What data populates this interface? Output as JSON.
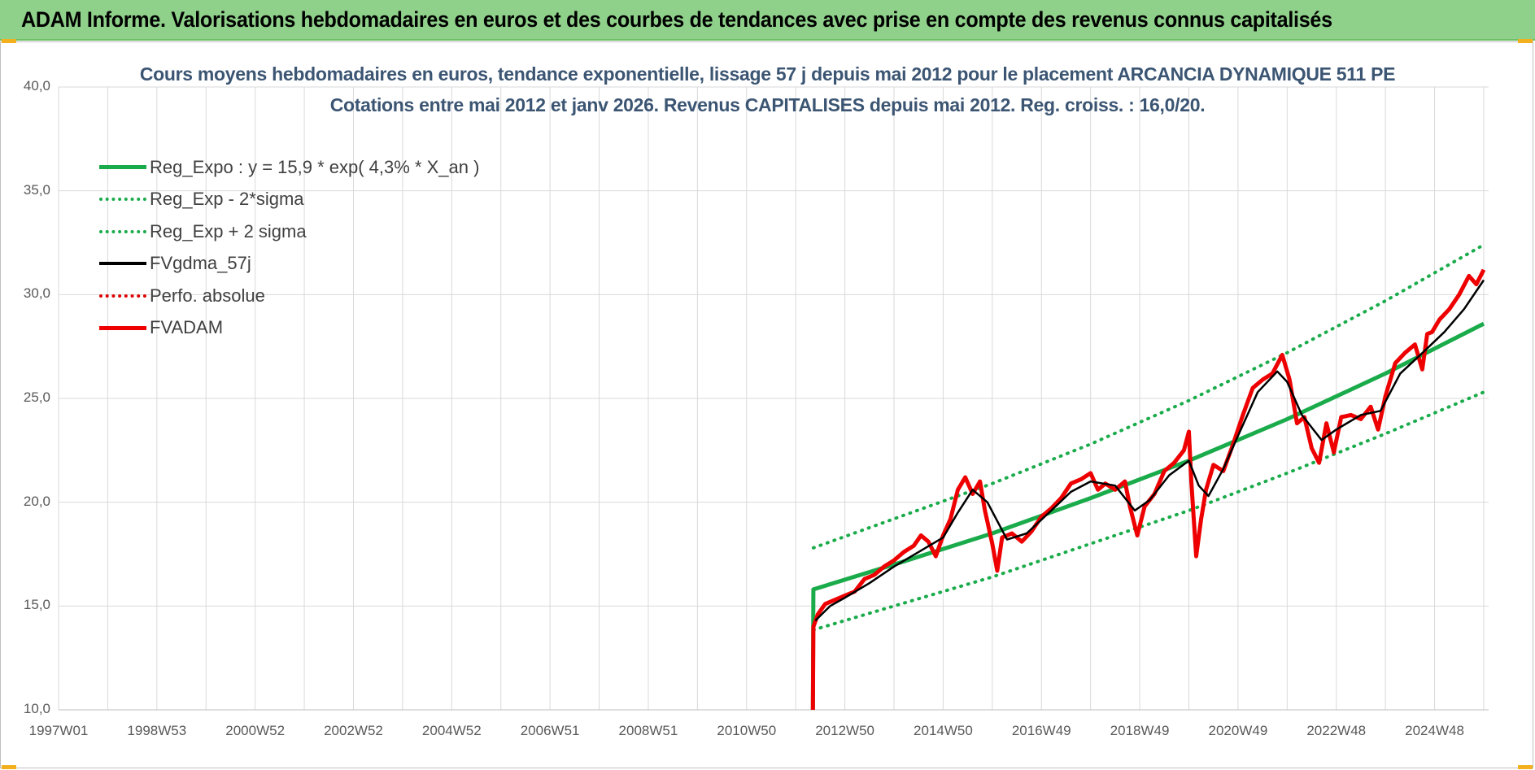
{
  "banner": {
    "title": "ADAM Informe. Valorisations hebdomadaires en euros et des courbes de tendances avec prise en compte des revenus connus capitalisés"
  },
  "chart_data": {
    "type": "line",
    "title": "Cours moyens hebdomadaires en euros, tendance exponentielle, lissage 57 j depuis mai 2012 pour le placement ARCANCIA DYNAMIQUE 511 PE",
    "subtitle": "Cotations entre mai 2012 et janv 2026. Revenus CAPITALISES depuis mai 2012. Reg. croiss. : 16,0/20.",
    "xlabel": "",
    "ylabel": "",
    "xlim": [
      1997.0,
      2026.1
    ],
    "ylim": [
      10,
      40
    ],
    "y_ticks": [
      "10,0",
      "15,0",
      "20,0",
      "25,0",
      "30,0",
      "35,0",
      "40,0"
    ],
    "x_ticks": [
      {
        "label": "1997W01",
        "x": 1997.0
      },
      {
        "label": "1998W53",
        "x": 1999.0
      },
      {
        "label": "2000W52",
        "x": 2001.0
      },
      {
        "label": "2002W52",
        "x": 2003.0
      },
      {
        "label": "2004W52",
        "x": 2005.0
      },
      {
        "label": "2006W51",
        "x": 2007.0
      },
      {
        "label": "2008W51",
        "x": 2009.0
      },
      {
        "label": "2010W50",
        "x": 2011.0
      },
      {
        "label": "2012W50",
        "x": 2013.0
      },
      {
        "label": "2014W50",
        "x": 2015.0
      },
      {
        "label": "2016W49",
        "x": 2017.0
      },
      {
        "label": "2018W49",
        "x": 2019.0
      },
      {
        "label": "2020W49",
        "x": 2021.0
      },
      {
        "label": "2022W48",
        "x": 2023.0
      },
      {
        "label": "2024W48",
        "x": 2025.0
      }
    ],
    "grid": true,
    "legend_position": "top-left",
    "series": [
      {
        "name": "Reg_Expo : y = 15,9 * exp( 4,3% *  X_an )",
        "color": "#1aab4b",
        "style": "solid-thick",
        "x": [
          2012.35,
          2012.36,
          2014.0,
          2016.0,
          2018.0,
          2020.0,
          2022.0,
          2024.0,
          2026.0
        ],
        "y": [
          10.0,
          15.8,
          17.0,
          18.5,
          20.2,
          22.0,
          24.0,
          26.2,
          28.6
        ]
      },
      {
        "name": "Reg_Exp - 2*sigma",
        "color": "#1aab4b",
        "style": "dotted",
        "x": [
          2012.36,
          2014.0,
          2016.0,
          2018.0,
          2020.0,
          2022.0,
          2024.0,
          2026.0
        ],
        "y": [
          13.85,
          15.0,
          16.4,
          18.0,
          19.6,
          21.4,
          23.3,
          25.3
        ]
      },
      {
        "name": "Reg_Exp + 2 sigma",
        "color": "#1aab4b",
        "style": "dotted",
        "x": [
          2012.36,
          2014.0,
          2016.0,
          2018.0,
          2020.0,
          2022.0,
          2024.0,
          2026.0
        ],
        "y": [
          17.8,
          19.2,
          20.9,
          22.8,
          24.9,
          27.2,
          29.7,
          32.4
        ]
      },
      {
        "name": "FVgdma_57j",
        "color": "#000000",
        "style": "solid",
        "x": [
          2012.4,
          2012.7,
          2013.0,
          2013.5,
          2014.0,
          2014.5,
          2015.0,
          2015.3,
          2015.6,
          2015.9,
          2016.3,
          2016.7,
          2017.2,
          2017.6,
          2018.0,
          2018.5,
          2018.9,
          2019.2,
          2019.6,
          2020.0,
          2020.2,
          2020.4,
          2020.7,
          2021.0,
          2021.4,
          2021.8,
          2022.0,
          2022.3,
          2022.7,
          2023.0,
          2023.5,
          2023.9,
          2024.3,
          2024.8,
          2025.2,
          2025.6,
          2026.0
        ],
        "y": [
          14.3,
          15.0,
          15.4,
          16.1,
          16.9,
          17.6,
          18.3,
          19.5,
          20.6,
          20.0,
          18.2,
          18.5,
          19.6,
          20.5,
          21.0,
          20.8,
          19.6,
          20.1,
          21.3,
          22.0,
          20.8,
          20.3,
          21.6,
          23.2,
          25.3,
          26.3,
          25.8,
          24.2,
          23.0,
          23.5,
          24.2,
          24.4,
          26.2,
          27.3,
          28.2,
          29.3,
          30.7
        ]
      },
      {
        "name": "Perfo. absolue",
        "color": "#e00000",
        "style": "dotted",
        "x": [],
        "y": []
      },
      {
        "name": "FVADAM",
        "color": "#ee0000",
        "style": "solid-thick",
        "x": [
          2012.35,
          2012.36,
          2012.45,
          2012.6,
          2012.8,
          2013.0,
          2013.2,
          2013.4,
          2013.6,
          2013.8,
          2014.0,
          2014.2,
          2014.4,
          2014.55,
          2014.7,
          2014.85,
          2015.0,
          2015.15,
          2015.3,
          2015.45,
          2015.6,
          2015.75,
          2015.85,
          2016.0,
          2016.1,
          2016.2,
          2016.4,
          2016.6,
          2016.8,
          2017.0,
          2017.2,
          2017.4,
          2017.6,
          2017.8,
          2018.0,
          2018.15,
          2018.3,
          2018.5,
          2018.7,
          2018.8,
          2018.95,
          2019.1,
          2019.3,
          2019.5,
          2019.7,
          2019.9,
          2020.0,
          2020.05,
          2020.15,
          2020.25,
          2020.35,
          2020.5,
          2020.7,
          2020.9,
          2021.1,
          2021.3,
          2021.5,
          2021.7,
          2021.9,
          2022.05,
          2022.2,
          2022.35,
          2022.5,
          2022.65,
          2022.8,
          2022.95,
          2023.1,
          2023.3,
          2023.5,
          2023.7,
          2023.85,
          2024.0,
          2024.2,
          2024.4,
          2024.6,
          2024.75,
          2024.85,
          2024.95,
          2025.1,
          2025.3,
          2025.5,
          2025.7,
          2025.85,
          2026.0
        ],
        "y": [
          10.0,
          14.0,
          14.6,
          15.1,
          15.3,
          15.5,
          15.7,
          16.3,
          16.5,
          16.9,
          17.2,
          17.6,
          17.9,
          18.4,
          18.1,
          17.4,
          18.4,
          19.2,
          20.6,
          21.2,
          20.4,
          21.0,
          19.6,
          18.0,
          16.7,
          18.3,
          18.5,
          18.1,
          18.6,
          19.3,
          19.7,
          20.2,
          20.9,
          21.1,
          21.4,
          20.6,
          20.9,
          20.6,
          21.0,
          19.8,
          18.4,
          19.8,
          20.4,
          21.5,
          21.9,
          22.5,
          23.4,
          21.0,
          17.4,
          19.2,
          20.6,
          21.8,
          21.5,
          22.8,
          24.2,
          25.5,
          25.9,
          26.2,
          27.1,
          25.9,
          23.8,
          24.1,
          22.6,
          21.9,
          23.8,
          22.4,
          24.1,
          24.2,
          24.0,
          24.6,
          23.5,
          25.1,
          26.7,
          27.2,
          27.6,
          26.4,
          28.1,
          28.2,
          28.8,
          29.3,
          30.0,
          30.9,
          30.5,
          31.2
        ]
      }
    ]
  }
}
